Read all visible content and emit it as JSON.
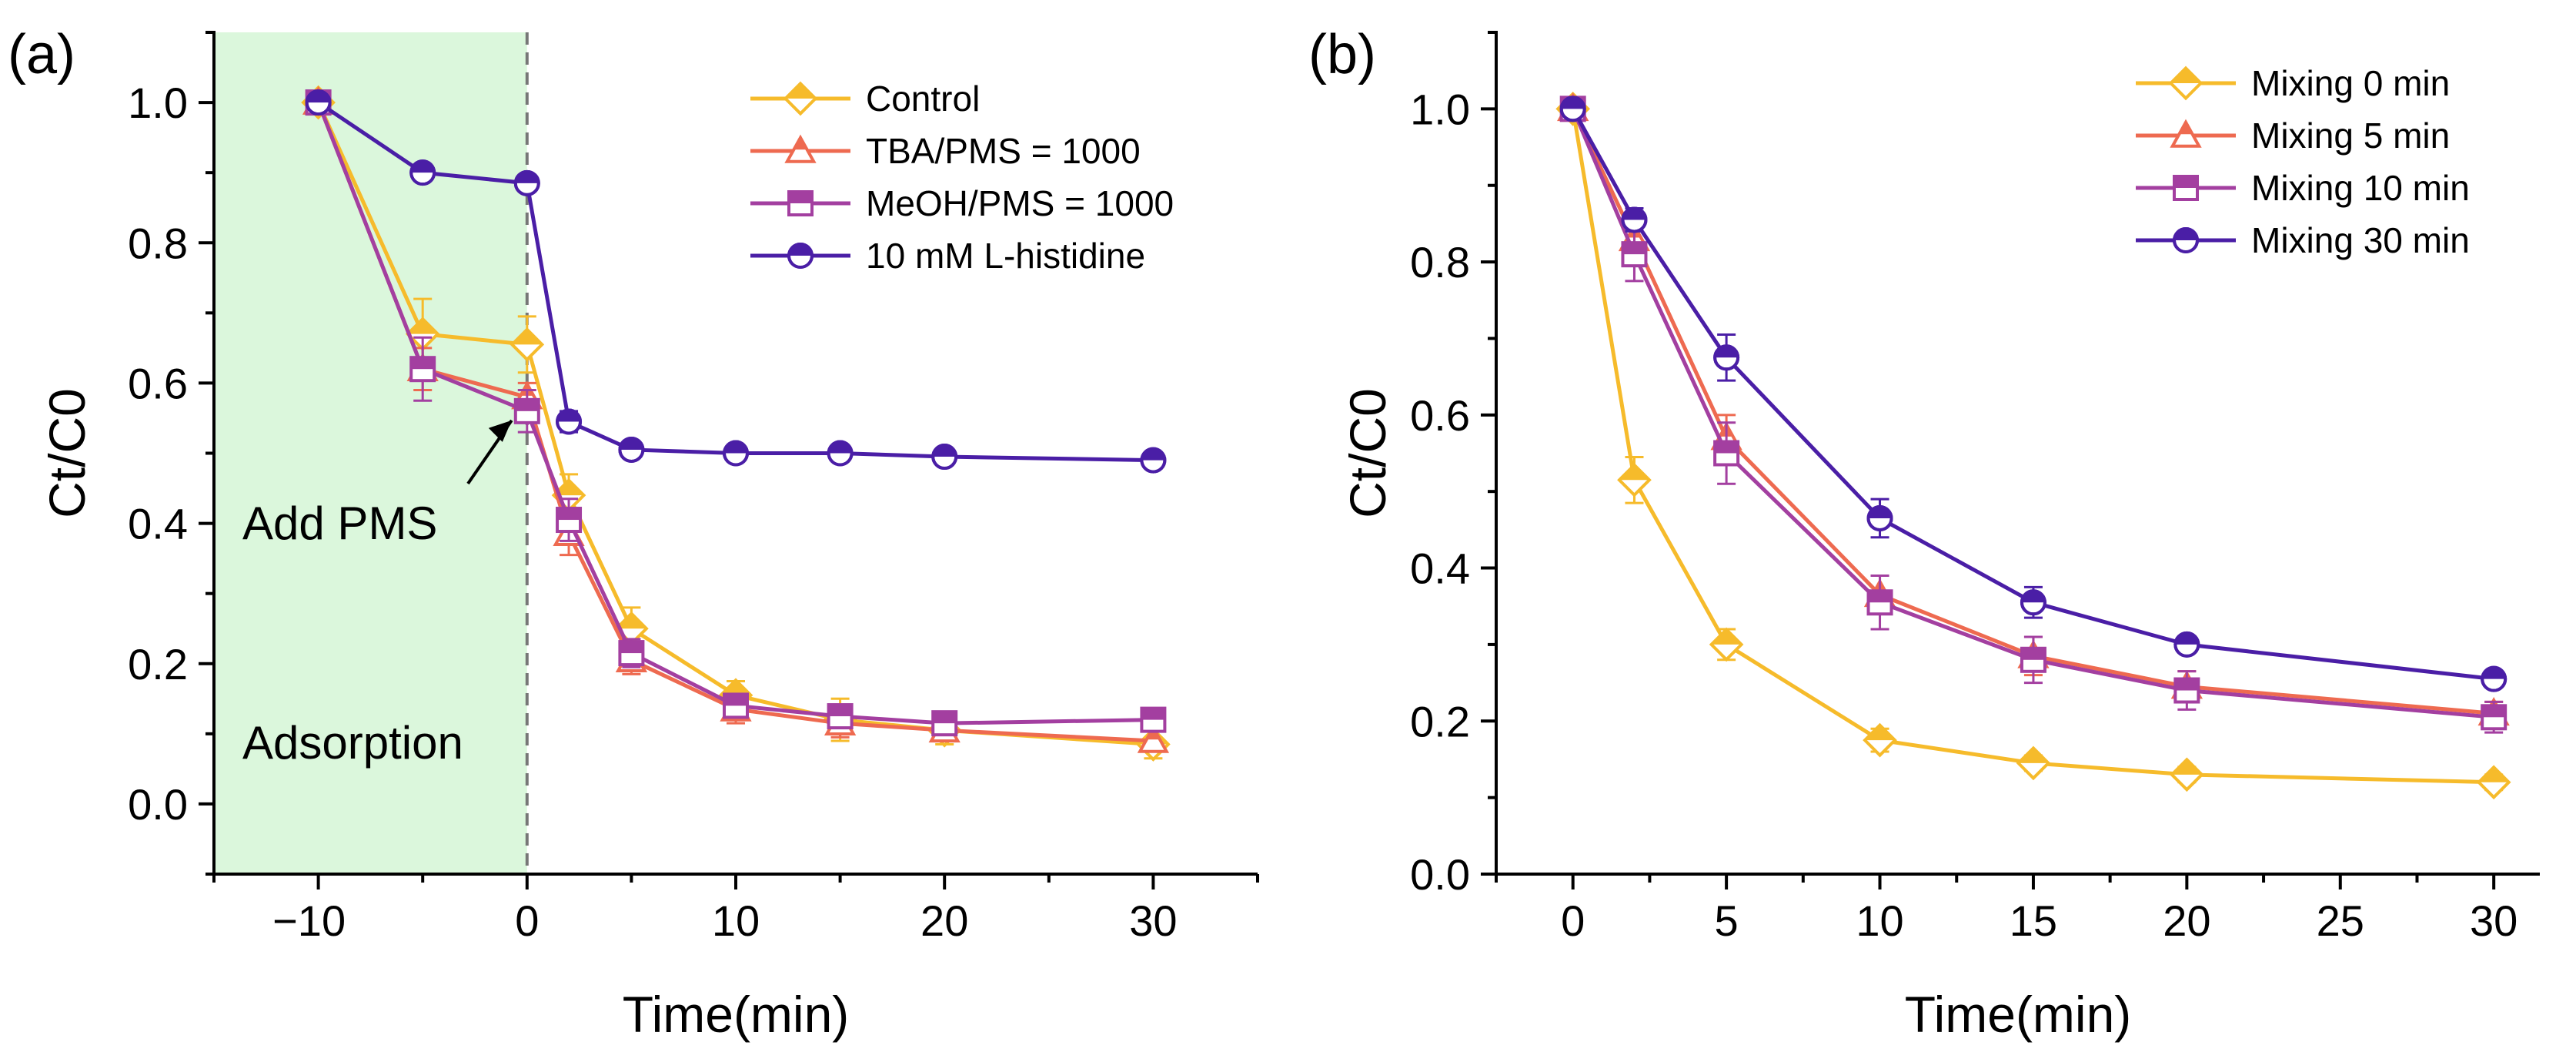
{
  "chart_data": [
    {
      "panel": "(a)",
      "type": "line",
      "title": "",
      "xlabel": "Time(min)",
      "ylabel": "Ct/C0",
      "xlim": [
        -15,
        35
      ],
      "ylim": [
        -0.1,
        1.1
      ],
      "xticks": [
        "−10",
        "0",
        "10",
        "20",
        "30"
      ],
      "yticks": [
        "0.0",
        "0.2",
        "0.4",
        "0.6",
        "0.8",
        "1.0"
      ],
      "shaded_region": {
        "x": [
          -15,
          0
        ],
        "label": "Adsorption",
        "color": "#dbf7dc"
      },
      "vline": {
        "x": 0,
        "style": "dashed"
      },
      "annotations": [
        {
          "text": "Add PMS",
          "points_to": [
            0,
            0.56
          ]
        }
      ],
      "legend_position": "top-right",
      "x": [
        -10,
        -5,
        0,
        2,
        5,
        10,
        15,
        20,
        30
      ],
      "series": [
        {
          "name": "Control",
          "color": "#f6bb2b",
          "marker": "diamond",
          "values": [
            1.0,
            0.67,
            0.655,
            0.44,
            0.25,
            0.155,
            0.12,
            0.105,
            0.085
          ],
          "errors": [
            0.01,
            0.05,
            0.04,
            0.03,
            0.03,
            0.02,
            0.03,
            0.02,
            0.02
          ]
        },
        {
          "name": "TBA/PMS = 1000",
          "color": "#ee6a50",
          "marker": "triangle",
          "values": [
            1.0,
            0.62,
            0.58,
            0.385,
            0.205,
            0.135,
            0.115,
            0.105,
            0.09
          ],
          "errors": [
            0.01,
            0.03,
            0.02,
            0.03,
            0.02,
            0.02,
            0.02,
            0.015,
            0.015
          ]
        },
        {
          "name": "MeOH/PMS = 1000",
          "color": "#a33fa0",
          "marker": "square",
          "values": [
            1.0,
            0.62,
            0.56,
            0.405,
            0.215,
            0.14,
            0.125,
            0.115,
            0.12
          ],
          "errors": [
            0.01,
            0.045,
            0.03,
            0.03,
            0.02,
            0.015,
            0.015,
            0.01,
            0.01
          ]
        },
        {
          "name": "10 mM L-histidine",
          "color": "#4a1ea6",
          "marker": "circle",
          "values": [
            1.0,
            0.9,
            0.885,
            0.545,
            0.505,
            0.5,
            0.5,
            0.495,
            0.49
          ],
          "errors": [
            0.005,
            0.01,
            0.01,
            0.015,
            0.01,
            0.01,
            0.01,
            0.01,
            0.01
          ]
        }
      ]
    },
    {
      "panel": "(b)",
      "type": "line",
      "title": "",
      "xlabel": "Time(min)",
      "ylabel": "Ct/C0",
      "xlim": [
        -2.5,
        31.5
      ],
      "ylim": [
        0.0,
        1.1
      ],
      "xticks": [
        "0",
        "5",
        "10",
        "15",
        "20",
        "25",
        "30"
      ],
      "yticks": [
        "0.0",
        "0.2",
        "0.4",
        "0.6",
        "0.8",
        "1.0"
      ],
      "legend_position": "top-right",
      "x": [
        0,
        2,
        5,
        10,
        15,
        20,
        30
      ],
      "series": [
        {
          "name": "Mixing 0 min",
          "color": "#f6bb2b",
          "marker": "diamond",
          "values": [
            1.0,
            0.515,
            0.3,
            0.175,
            0.145,
            0.13,
            0.12
          ],
          "errors": [
            0.01,
            0.03,
            0.02,
            0.015,
            0.01,
            0.01,
            0.01
          ]
        },
        {
          "name": "Mixing 5 min",
          "color": "#ee6a50",
          "marker": "triangle",
          "values": [
            1.0,
            0.83,
            0.57,
            0.365,
            0.285,
            0.245,
            0.21
          ],
          "errors": [
            0.01,
            0.02,
            0.03,
            0.025,
            0.025,
            0.02,
            0.015
          ]
        },
        {
          "name": "Mixing 10 min",
          "color": "#a33fa0",
          "marker": "square",
          "values": [
            1.0,
            0.81,
            0.55,
            0.355,
            0.28,
            0.24,
            0.205
          ],
          "errors": [
            0.01,
            0.035,
            0.04,
            0.035,
            0.03,
            0.025,
            0.02
          ]
        },
        {
          "name": "Mixing 30 min",
          "color": "#4a1ea6",
          "marker": "circle",
          "values": [
            1.0,
            0.855,
            0.675,
            0.465,
            0.355,
            0.3,
            0.255
          ],
          "errors": [
            0.01,
            0.015,
            0.03,
            0.025,
            0.02,
            0.01,
            0.01
          ]
        }
      ]
    }
  ]
}
